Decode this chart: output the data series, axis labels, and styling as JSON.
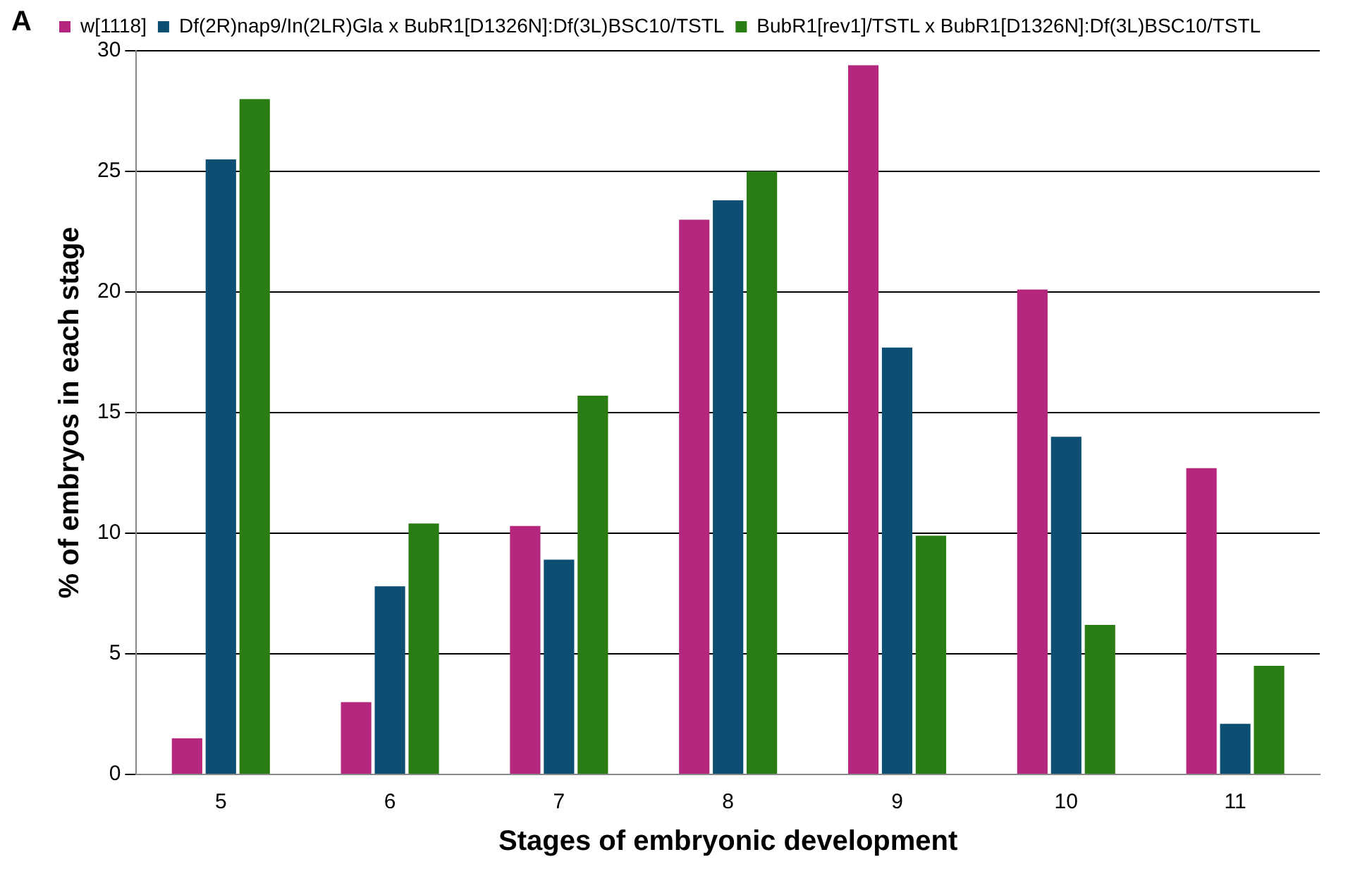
{
  "chart_data": {
    "type": "bar",
    "xlabel": "Stages of embryonic development",
    "ylabel": "% of embryos in each stage",
    "annotations": [
      "A"
    ],
    "categories": [
      "5",
      "6",
      "7",
      "8",
      "9",
      "10",
      "11"
    ],
    "series": [
      {
        "name": "w[1118]",
        "color": "#b5267e",
        "values": [
          1.5,
          3,
          10.3,
          23,
          29.4,
          20.1,
          12.7
        ]
      },
      {
        "name": "Df(2R)nap9/In(2LR)Gla x BubR1[D1326N]:Df(3L)BSC10/TSTL",
        "color": "#0c4f72",
        "values": [
          25.5,
          7.8,
          8.9,
          23.8,
          17.7,
          14,
          2.1
        ]
      },
      {
        "name": "BubR1[rev1]/TSTL x BubR1[D1326N]:Df(3L)BSC10/TSTL",
        "color": "#2a7d12",
        "values": [
          28,
          10.4,
          15.7,
          25,
          9.9,
          6.2,
          4.5
        ]
      }
    ],
    "ylim": [
      0,
      30
    ],
    "yticks": [
      0,
      5,
      10,
      15,
      20,
      25,
      30
    ],
    "grid": "y",
    "legend": "top left"
  }
}
